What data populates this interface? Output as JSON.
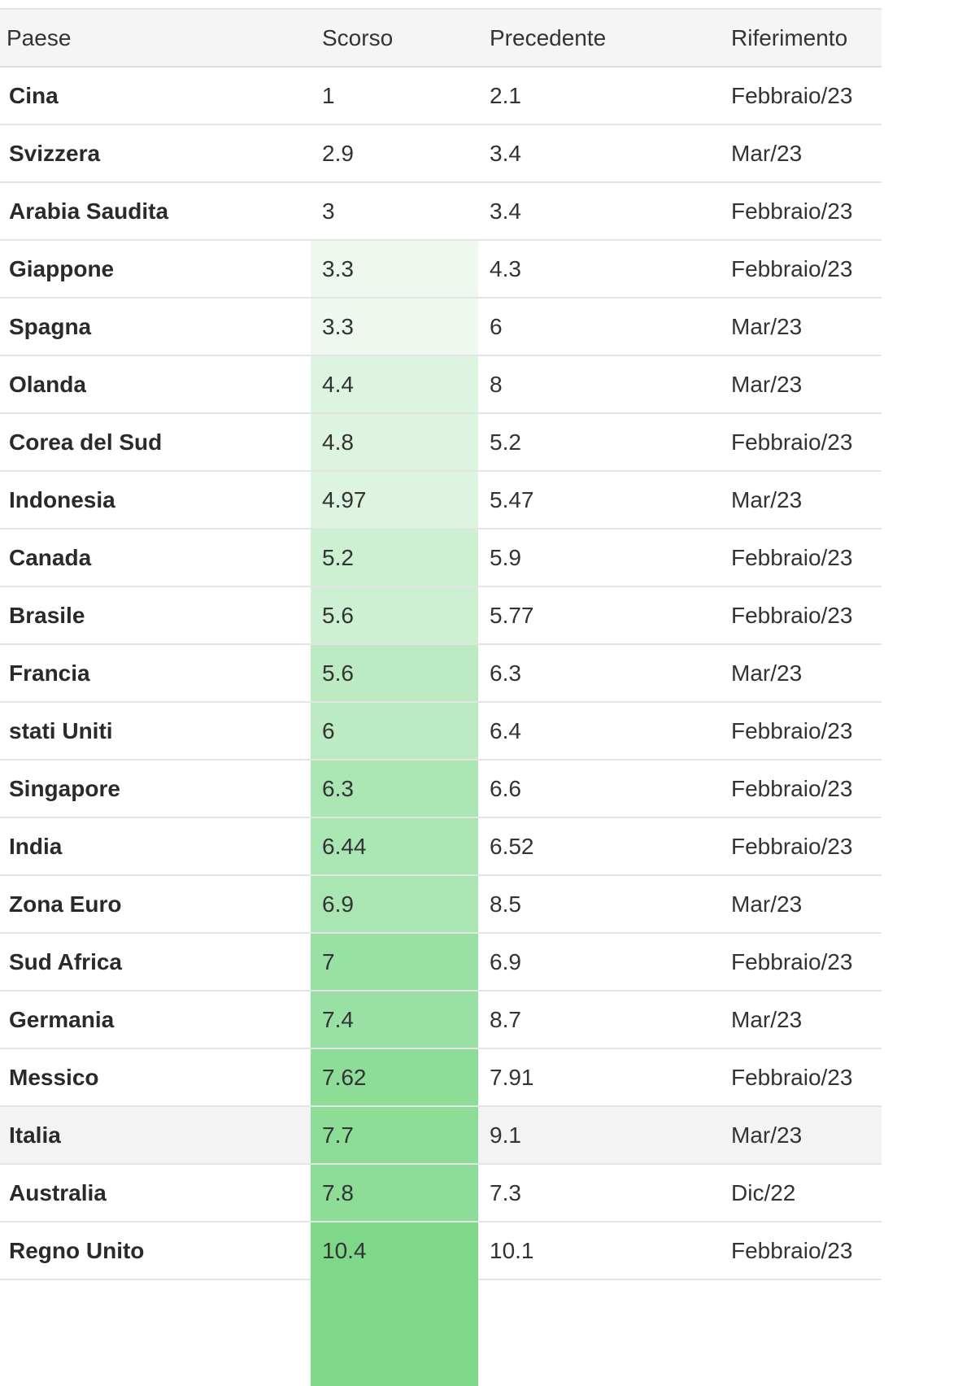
{
  "table": {
    "headers": {
      "country": "Paese",
      "last": "Scorso",
      "previous": "Precedente",
      "reference": "Riferimento"
    },
    "rows": [
      {
        "country": "Cina",
        "last": "1",
        "previous": "2.1",
        "reference": "Febbraio/23",
        "heat": "#ffffff"
      },
      {
        "country": "Svizzera",
        "last": "2.9",
        "previous": "3.4",
        "reference": "Mar/23",
        "heat": "#ffffff"
      },
      {
        "country": "Arabia Saudita",
        "last": "3",
        "previous": "3.4",
        "reference": "Febbraio/23",
        "heat": "#ffffff"
      },
      {
        "country": "Giappone",
        "last": "3.3",
        "previous": "4.3",
        "reference": "Febbraio/23",
        "heat": "#eef8ef"
      },
      {
        "country": "Spagna",
        "last": "3.3",
        "previous": "6",
        "reference": "Mar/23",
        "heat": "#eef8ef"
      },
      {
        "country": "Olanda",
        "last": "4.4",
        "previous": "8",
        "reference": "Mar/23",
        "heat": "#ddf4e0"
      },
      {
        "country": "Corea del Sud",
        "last": "4.8",
        "previous": "5.2",
        "reference": "Febbraio/23",
        "heat": "#ddf4e0"
      },
      {
        "country": "Indonesia",
        "last": "4.97",
        "previous": "5.47",
        "reference": "Mar/23",
        "heat": "#ddf4e0"
      },
      {
        "country": "Canada",
        "last": "5.2",
        "previous": "5.9",
        "reference": "Febbraio/23",
        "heat": "#cdefd2"
      },
      {
        "country": "Brasile",
        "last": "5.6",
        "previous": "5.77",
        "reference": "Febbraio/23",
        "heat": "#cdefd2"
      },
      {
        "country": "Francia",
        "last": "5.6",
        "previous": "6.3",
        "reference": "Mar/23",
        "heat": "#bcebc3"
      },
      {
        "country": "stati Uniti",
        "last": "6",
        "previous": "6.4",
        "reference": "Febbraio/23",
        "heat": "#bcebc3"
      },
      {
        "country": "Singapore",
        "last": "6.3",
        "previous": "6.6",
        "reference": "Febbraio/23",
        "heat": "#aae6b3"
      },
      {
        "country": "India",
        "last": "6.44",
        "previous": "6.52",
        "reference": "Febbraio/23",
        "heat": "#aae6b3"
      },
      {
        "country": "Zona Euro",
        "last": "6.9",
        "previous": "8.5",
        "reference": "Mar/23",
        "heat": "#aae6b3"
      },
      {
        "country": "Sud Africa",
        "last": "7",
        "previous": "6.9",
        "reference": "Febbraio/23",
        "heat": "#98e0a3"
      },
      {
        "country": "Germania",
        "last": "7.4",
        "previous": "8.7",
        "reference": "Mar/23",
        "heat": "#98e0a3"
      },
      {
        "country": "Messico",
        "last": "7.62",
        "previous": "7.91",
        "reference": "Febbraio/23",
        "heat": "#8ddd99"
      },
      {
        "country": "Italia",
        "last": "7.7",
        "previous": "9.1",
        "reference": "Mar/23",
        "heat": "#8ddd99",
        "highlighted": true
      },
      {
        "country": "Australia",
        "last": "7.8",
        "previous": "7.3",
        "reference": "Dic/22",
        "heat": "#8ddd99"
      },
      {
        "country": "Regno Unito",
        "last": "10.4",
        "previous": "10.1",
        "reference": "Febbraio/23",
        "heat": "#7fd88a"
      }
    ]
  }
}
